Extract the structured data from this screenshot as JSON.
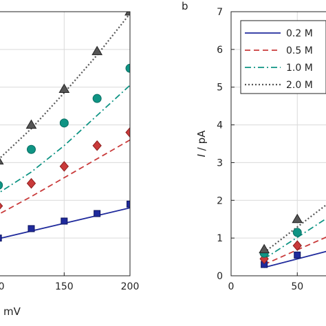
{
  "panel_b_label": "b",
  "chart_data": [
    {
      "type": "scatter",
      "panel": "a (cropped)",
      "xlabel": "mV",
      "ylabel": "",
      "xlim": [
        96,
        200
      ],
      "ylim": [
        0,
        7
      ],
      "xticks": [
        "00",
        "150",
        "200"
      ],
      "grid": true,
      "series": [
        {
          "key": "s02",
          "marker": "square",
          "color": "#1f2a9c",
          "points": [
            [
              100,
              1.0
            ],
            [
              125,
              1.25
            ],
            [
              150,
              1.45
            ],
            [
              175,
              1.65
            ],
            [
              200,
              1.9
            ]
          ],
          "fit": [
            [
              96,
              0.95
            ],
            [
              200,
              1.8
            ]
          ]
        },
        {
          "key": "s05",
          "marker": "diamond",
          "color": "#c93a3a",
          "points": [
            [
              100,
              1.85
            ],
            [
              125,
              2.45
            ],
            [
              150,
              2.9
            ],
            [
              175,
              3.45
            ],
            [
              200,
              3.8
            ]
          ],
          "fit": [
            [
              96,
              1.55
            ],
            [
              125,
              2.1
            ],
            [
              150,
              2.6
            ],
            [
              175,
              3.1
            ],
            [
              200,
              3.6
            ]
          ]
        },
        {
          "key": "s10",
          "marker": "circle",
          "color": "#0f9484",
          "points": [
            [
              100,
              2.4
            ],
            [
              125,
              3.35
            ],
            [
              150,
              4.05
            ],
            [
              175,
              4.7
            ],
            [
              200,
              5.5
            ]
          ],
          "fit": [
            [
              96,
              2.1
            ],
            [
              125,
              2.75
            ],
            [
              150,
              3.45
            ],
            [
              175,
              4.25
            ],
            [
              200,
              5.05
            ]
          ]
        },
        {
          "key": "s20",
          "marker": "triangle",
          "color": "#555555",
          "points": [
            [
              100,
              3.05
            ],
            [
              125,
              4.0
            ],
            [
              150,
              4.95
            ],
            [
              175,
              5.95
            ],
            [
              200,
              7.0
            ]
          ],
          "fit": [
            [
              96,
              2.95
            ],
            [
              125,
              3.9
            ],
            [
              150,
              4.85
            ],
            [
              175,
              5.85
            ],
            [
              200,
              6.95
            ]
          ]
        }
      ]
    },
    {
      "type": "scatter",
      "panel": "b",
      "xlabel": "",
      "ylabel_italic": "I",
      "ylabel_rest": " / pA",
      "xlim": [
        0,
        80
      ],
      "ylim": [
        0,
        7
      ],
      "xticks": [
        "0",
        "50"
      ],
      "yticks": [
        "0",
        "1",
        "2",
        "3",
        "4",
        "5",
        "6",
        "7"
      ],
      "grid": true,
      "legend": {
        "placement": "top-left",
        "entries": [
          {
            "label": "0.2 M",
            "key": "s02"
          },
          {
            "label": "0.5 M",
            "key": "s05"
          },
          {
            "label": "1.0 M",
            "key": "s10"
          },
          {
            "label": "2.0 M",
            "key": "s20"
          }
        ]
      },
      "series": [
        {
          "key": "s02",
          "marker": "square",
          "color": "#1f2a9c",
          "points": [
            [
              25,
              0.3
            ],
            [
              50,
              0.55
            ]
          ],
          "fit": [
            [
              25,
              0.22
            ],
            [
              80,
              0.72
            ]
          ]
        },
        {
          "key": "s05",
          "marker": "diamond",
          "color": "#c93a3a",
          "points": [
            [
              25,
              0.45
            ],
            [
              50,
              0.8
            ]
          ],
          "fit": [
            [
              25,
              0.3
            ],
            [
              80,
              1.15
            ]
          ]
        },
        {
          "key": "s10",
          "marker": "circle",
          "color": "#0f9484",
          "points": [
            [
              25,
              0.6
            ],
            [
              50,
              1.15
            ]
          ],
          "fit": [
            [
              25,
              0.45
            ],
            [
              80,
              1.7
            ]
          ]
        },
        {
          "key": "s20",
          "marker": "triangle",
          "color": "#555555",
          "points": [
            [
              25,
              0.7
            ],
            [
              50,
              1.5
            ]
          ],
          "fit": [
            [
              25,
              0.62
            ],
            [
              80,
              2.1
            ]
          ]
        }
      ]
    }
  ]
}
